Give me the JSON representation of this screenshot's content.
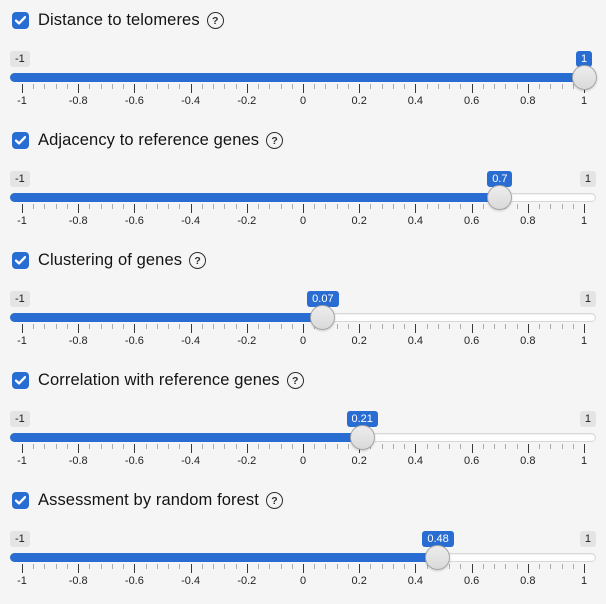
{
  "colors": {
    "accent": "#2a6dd2",
    "page_bg": "#f5f5f6",
    "badge_bg": "#e4e4e4",
    "tooltip_text": "#ffffff"
  },
  "icons": {
    "help_glyph": "?",
    "help_name": "question-circle-icon",
    "check_name": "check-icon"
  },
  "sliders": [
    {
      "label": "Distance to telomeres",
      "checked": true,
      "min": -1,
      "max": 1,
      "value": 1,
      "value_label": "1",
      "min_label": "-1",
      "max_label": "1"
    },
    {
      "label": "Adjacency to reference genes",
      "checked": true,
      "min": -1,
      "max": 1,
      "value": 0.7,
      "value_label": "0.7",
      "min_label": "-1",
      "max_label": "1"
    },
    {
      "label": "Clustering of genes",
      "checked": true,
      "min": -1,
      "max": 1,
      "value": 0.07,
      "value_label": "0.07",
      "min_label": "-1",
      "max_label": "1"
    },
    {
      "label": "Correlation with reference genes",
      "checked": true,
      "min": -1,
      "max": 1,
      "value": 0.21,
      "value_label": "0.21",
      "min_label": "-1",
      "max_label": "1"
    },
    {
      "label": "Assessment by random forest",
      "checked": true,
      "min": -1,
      "max": 1,
      "value": 0.48,
      "value_label": "0.48",
      "min_label": "-1",
      "max_label": "1"
    }
  ],
  "grid": {
    "major_tick_labels": [
      "-1",
      "-0.8",
      "-0.6",
      "-0.4",
      "-0.2",
      "0",
      "0.2",
      "0.4",
      "0.6",
      "0.8",
      "1"
    ],
    "minor_ticks_per_interval": 4
  }
}
